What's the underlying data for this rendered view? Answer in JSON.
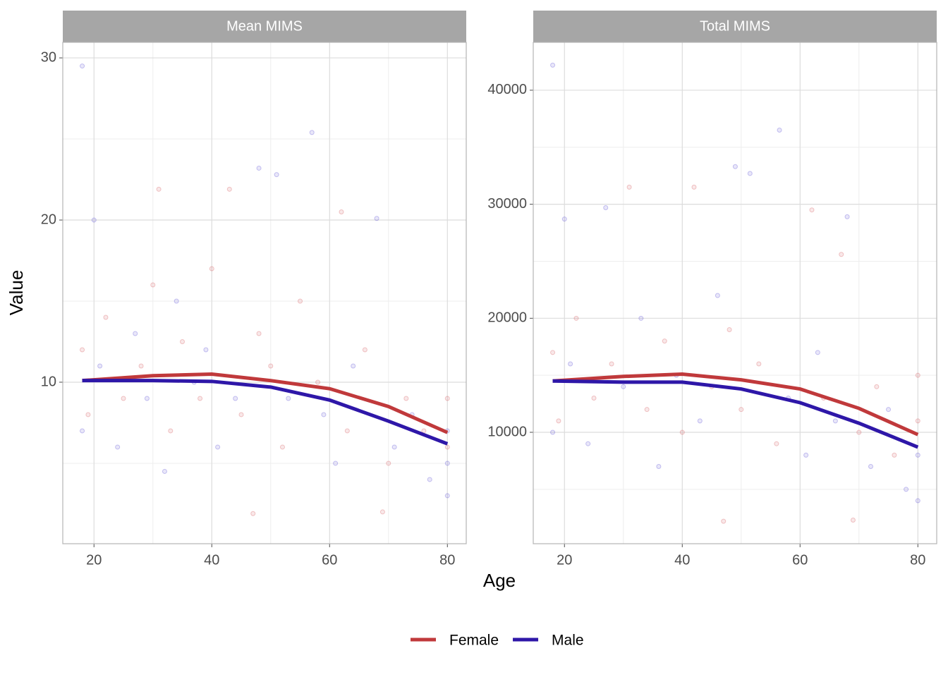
{
  "chart_data": [
    {
      "type": "scatter",
      "title": "Mean MIMS",
      "x_label": "Age",
      "y_label": "Value",
      "xlim": [
        14.7,
        83.2
      ],
      "xticks": [
        20,
        40,
        60,
        80
      ],
      "xminor": [
        30,
        50,
        70
      ],
      "ylim": [
        0.04,
        30.96
      ],
      "yticks": [
        10,
        20,
        30
      ],
      "yminor": [
        5,
        15,
        25
      ],
      "grid": true,
      "legend": "bottom",
      "points": [
        {
          "color": "#d0454a",
          "x": [
            18,
            19,
            22,
            25,
            28,
            30,
            31,
            33,
            35,
            38,
            40,
            43,
            45,
            48,
            50,
            52,
            55,
            58,
            62,
            63,
            66,
            70,
            73,
            76,
            80,
            80,
            69,
            47
          ],
          "values": [
            12,
            8,
            14,
            9,
            11,
            16,
            21.9,
            7,
            12.5,
            9,
            17,
            21.9,
            8,
            13,
            11,
            6,
            15,
            10,
            20.5,
            7,
            12,
            5,
            9,
            7,
            6,
            9,
            2,
            1.9
          ]
        },
        {
          "color": "#4a3ad0",
          "x": [
            18,
            18,
            20,
            21,
            24,
            27,
            29,
            32,
            34,
            37,
            39,
            41,
            44,
            48,
            51,
            53,
            57,
            59,
            61,
            64,
            68,
            71,
            74,
            77,
            80,
            80,
            80
          ],
          "values": [
            29.5,
            7,
            20,
            11,
            6,
            13,
            9,
            4.5,
            15,
            10,
            12,
            6,
            9,
            23.2,
            22.8,
            9,
            25.4,
            8,
            5,
            11,
            20.1,
            6,
            8,
            4,
            5,
            3,
            7
          ]
        }
      ],
      "series": [
        {
          "name": "Female",
          "color": "#c0393b",
          "x": [
            18,
            30,
            40,
            50,
            60,
            70,
            80
          ],
          "values": [
            10.1,
            10.4,
            10.5,
            10.1,
            9.6,
            8.5,
            6.9
          ]
        },
        {
          "name": "Male",
          "color": "#2e17a8",
          "x": [
            18,
            30,
            40,
            50,
            60,
            70,
            80
          ],
          "values": [
            10.1,
            10.1,
            10.05,
            9.7,
            8.9,
            7.6,
            6.2
          ]
        }
      ]
    },
    {
      "type": "scatter",
      "title": "Total MIMS",
      "xlim": [
        14.7,
        83.2
      ],
      "xticks": [
        20,
        40,
        60,
        80
      ],
      "xminor": [
        30,
        50,
        70
      ],
      "ylim": [
        230,
        44200
      ],
      "yticks": [
        10000,
        20000,
        30000,
        40000
      ],
      "yminor": [
        5000,
        15000,
        25000,
        35000
      ],
      "grid": true,
      "points": [
        {
          "color": "#d0454a",
          "x": [
            18,
            19,
            22,
            25,
            28,
            31,
            34,
            37,
            40,
            42,
            45,
            48,
            50,
            53,
            56,
            62,
            64,
            67,
            70,
            73,
            76,
            80,
            80,
            47,
            69
          ],
          "values": [
            17000,
            11000,
            20000,
            13000,
            16000,
            31500,
            12000,
            18000,
            10000,
            31500,
            14000,
            19000,
            12000,
            16000,
            9000,
            29500,
            13000,
            25600,
            10000,
            14000,
            8000,
            11000,
            15000,
            2200,
            2300
          ]
        },
        {
          "color": "#4a3ad0",
          "x": [
            18,
            18,
            20,
            21,
            24,
            27,
            30,
            33,
            36,
            39,
            43,
            46,
            49,
            51.5,
            56.5,
            58,
            61,
            63,
            66,
            68,
            72,
            75,
            78,
            80,
            80
          ],
          "values": [
            42200,
            10000,
            28700,
            16000,
            9000,
            29700,
            14000,
            20000,
            7000,
            15000,
            11000,
            22000,
            33300,
            32700,
            36500,
            13000,
            8000,
            17000,
            11000,
            28900,
            7000,
            12000,
            5000,
            4000,
            8000
          ]
        }
      ],
      "series": [
        {
          "color": "#c0393b",
          "x": [
            18,
            30,
            40,
            50,
            60,
            70,
            80
          ],
          "values": [
            14500,
            14900,
            15100,
            14600,
            13800,
            12100,
            9800
          ]
        },
        {
          "color": "#2e17a8",
          "x": [
            18,
            30,
            40,
            50,
            60,
            70,
            80
          ],
          "values": [
            14500,
            14400,
            14400,
            13800,
            12600,
            10800,
            8700
          ]
        }
      ]
    }
  ]
}
